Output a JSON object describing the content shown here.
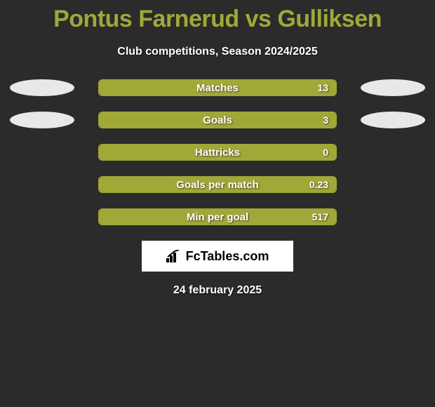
{
  "title": "Pontus Farnerud vs Gulliksen",
  "subtitle": "Club competitions, Season 2024/2025",
  "date": "24 february 2025",
  "logo_text": "FcTables.com",
  "colors": {
    "background": "#2b2b2b",
    "accent": "#a0a838",
    "oval": "#e8e8e8",
    "text": "#ffffff"
  },
  "stats": [
    {
      "label": "Matches",
      "value": "13",
      "fill_pct": 100,
      "show_ovals": true
    },
    {
      "label": "Goals",
      "value": "3",
      "fill_pct": 100,
      "show_ovals": true
    },
    {
      "label": "Hattricks",
      "value": "0",
      "fill_pct": 100,
      "show_ovals": false
    },
    {
      "label": "Goals per match",
      "value": "0.23",
      "fill_pct": 100,
      "show_ovals": false
    },
    {
      "label": "Min per goal",
      "value": "517",
      "fill_pct": 100,
      "show_ovals": false
    }
  ]
}
